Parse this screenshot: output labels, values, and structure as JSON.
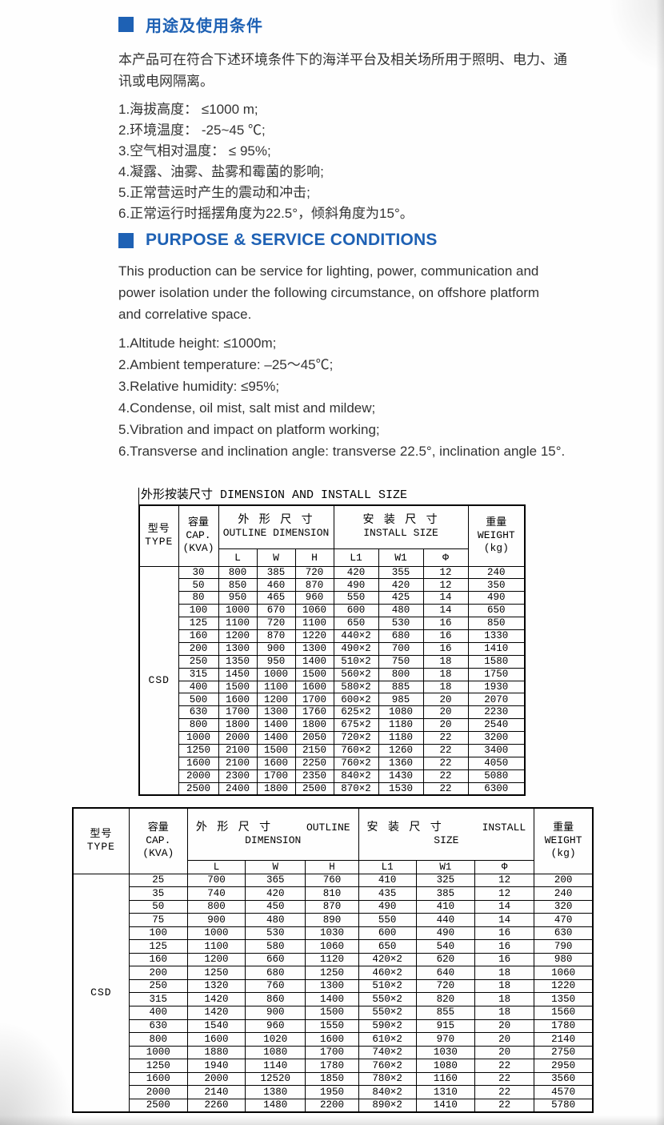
{
  "accent_color": "#1e61b4",
  "cn": {
    "title": "用途及使用条件",
    "paragraph": "本产品可在符合下述环境条件下的海洋平台及相关场所用于照明、电力、通讯或电网隔离。",
    "items": [
      "1.海拔高度： ≤1000 m;",
      "2.环境温度： -25~45 ℃;",
      "3.空气相对温度： ≤ 95%;",
      "4.凝露、油雾、盐雾和霉菌的影响;",
      "5.正常营运时产生的震动和冲击;",
      "6.正常运行时摇摆角度为22.5°，倾斜角度为15°。"
    ]
  },
  "en": {
    "title": "PURPOSE & SERVICE CONDITIONS",
    "paragraph": "This production can be service for lighting, power, communication and power isolation under the following circumstance, on offshore platform and correlative space.",
    "items": [
      "1.Altitude height: ≤1000m;",
      "2.Ambient temperature: –25～45℃;",
      "3.Relative humidity: ≤95%;",
      "4.Condense, oil mist, salt mist and mildew;",
      "5.Vibration and impact on platform working;",
      "6.Transverse and inclination angle: transverse 22.5°, inclination angle 15°."
    ]
  },
  "table1": {
    "title": "外形按装尺寸 DIMENSION AND INSTALL SIZE",
    "h": {
      "type": "型号\nTYPE",
      "cap": "容量\nCAP.\n(KVA)",
      "outline_cn": "外 形 尺 寸",
      "outline_en": "OUTLINE DIMENSION",
      "install_cn": "安 装 尺 寸",
      "install_en": "INSTALL SIZE",
      "weight": "重量\nWEIGHT\n(kg)",
      "sub": [
        "L",
        "W",
        "H",
        "L1",
        "W1",
        "Φ"
      ]
    },
    "type_value": "CSD",
    "rows": [
      [
        "30",
        "800",
        "385",
        "720",
        "420",
        "355",
        "12",
        "240"
      ],
      [
        "50",
        "850",
        "460",
        "870",
        "490",
        "420",
        "12",
        "350"
      ],
      [
        "80",
        "950",
        "465",
        "960",
        "550",
        "425",
        "14",
        "490"
      ],
      [
        "100",
        "1000",
        "670",
        "1060",
        "600",
        "480",
        "14",
        "650"
      ],
      [
        "125",
        "1100",
        "720",
        "1100",
        "650",
        "530",
        "16",
        "850"
      ],
      [
        "160",
        "1200",
        "870",
        "1220",
        "440×2",
        "680",
        "16",
        "1330"
      ],
      [
        "200",
        "1300",
        "900",
        "1300",
        "490×2",
        "700",
        "16",
        "1410"
      ],
      [
        "250",
        "1350",
        "950",
        "1400",
        "510×2",
        "750",
        "18",
        "1580"
      ],
      [
        "315",
        "1450",
        "1000",
        "1500",
        "560×2",
        "800",
        "18",
        "1750"
      ],
      [
        "400",
        "1500",
        "1100",
        "1600",
        "580×2",
        "885",
        "18",
        "1930"
      ],
      [
        "500",
        "1600",
        "1200",
        "1700",
        "600×2",
        "985",
        "20",
        "2070"
      ],
      [
        "630",
        "1700",
        "1300",
        "1760",
        "625×2",
        "1080",
        "20",
        "2230"
      ],
      [
        "800",
        "1800",
        "1400",
        "1800",
        "675×2",
        "1180",
        "20",
        "2540"
      ],
      [
        "1000",
        "2000",
        "1400",
        "2050",
        "720×2",
        "1180",
        "22",
        "3200"
      ],
      [
        "1250",
        "2100",
        "1500",
        "2150",
        "760×2",
        "1260",
        "22",
        "3400"
      ],
      [
        "1600",
        "2100",
        "1600",
        "2250",
        "760×2",
        "1360",
        "22",
        "4050"
      ],
      [
        "2000",
        "2300",
        "1700",
        "2350",
        "840×2",
        "1430",
        "22",
        "5080"
      ],
      [
        "2500",
        "2400",
        "1800",
        "2500",
        "870×2",
        "1530",
        "22",
        "6300"
      ]
    ]
  },
  "table2": {
    "h": {
      "type": "型号\nTYPE",
      "cap": "容量\nCAP.\n(KVA)",
      "outline_cn": "外 形 尺 寸",
      "outline_en_right": "OUTLINE",
      "outline_en_center": "DIMENSION",
      "install_cn": "安 装 尺 寸",
      "install_en_right": "INSTALL",
      "install_en_center": "SIZE",
      "weight": "重量\nWEIGHT\n(kg)",
      "sub": [
        "L",
        "W",
        "H",
        "L1",
        "W1",
        "Φ"
      ]
    },
    "type_value": "CSD",
    "rows": [
      [
        "25",
        "700",
        "365",
        "760",
        "410",
        "325",
        "12",
        "200"
      ],
      [
        "35",
        "740",
        "420",
        "810",
        "435",
        "385",
        "12",
        "240"
      ],
      [
        "50",
        "800",
        "450",
        "870",
        "490",
        "410",
        "14",
        "320"
      ],
      [
        "75",
        "900",
        "480",
        "890",
        "550",
        "440",
        "14",
        "470"
      ],
      [
        "100",
        "1000",
        "530",
        "1030",
        "600",
        "490",
        "16",
        "630"
      ],
      [
        "125",
        "1100",
        "580",
        "1060",
        "650",
        "540",
        "16",
        "790"
      ],
      [
        "160",
        "1200",
        "660",
        "1120",
        "420×2",
        "620",
        "16",
        "980"
      ],
      [
        "200",
        "1250",
        "680",
        "1250",
        "460×2",
        "640",
        "18",
        "1060"
      ],
      [
        "250",
        "1320",
        "760",
        "1300",
        "510×2",
        "720",
        "18",
        "1220"
      ],
      [
        "315",
        "1420",
        "860",
        "1400",
        "550×2",
        "820",
        "18",
        "1350"
      ],
      [
        "400",
        "1420",
        "900",
        "1500",
        "550×2",
        "855",
        "18",
        "1560"
      ],
      [
        "630",
        "1540",
        "960",
        "1550",
        "590×2",
        "915",
        "20",
        "1780"
      ],
      [
        "800",
        "1600",
        "1020",
        "1600",
        "610×2",
        "970",
        "20",
        "2140"
      ],
      [
        "1000",
        "1880",
        "1080",
        "1700",
        "740×2",
        "1030",
        "20",
        "2750"
      ],
      [
        "1250",
        "1940",
        "1140",
        "1780",
        "760×2",
        "1080",
        "22",
        "2950"
      ],
      [
        "1600",
        "2000",
        "12520",
        "1850",
        "780×2",
        "1160",
        "22",
        "3560"
      ],
      [
        "2000",
        "2140",
        "1380",
        "1950",
        "840×2",
        "1310",
        "22",
        "4570"
      ],
      [
        "2500",
        "2260",
        "1480",
        "2200",
        "890×2",
        "1410",
        "22",
        "5780"
      ]
    ]
  }
}
